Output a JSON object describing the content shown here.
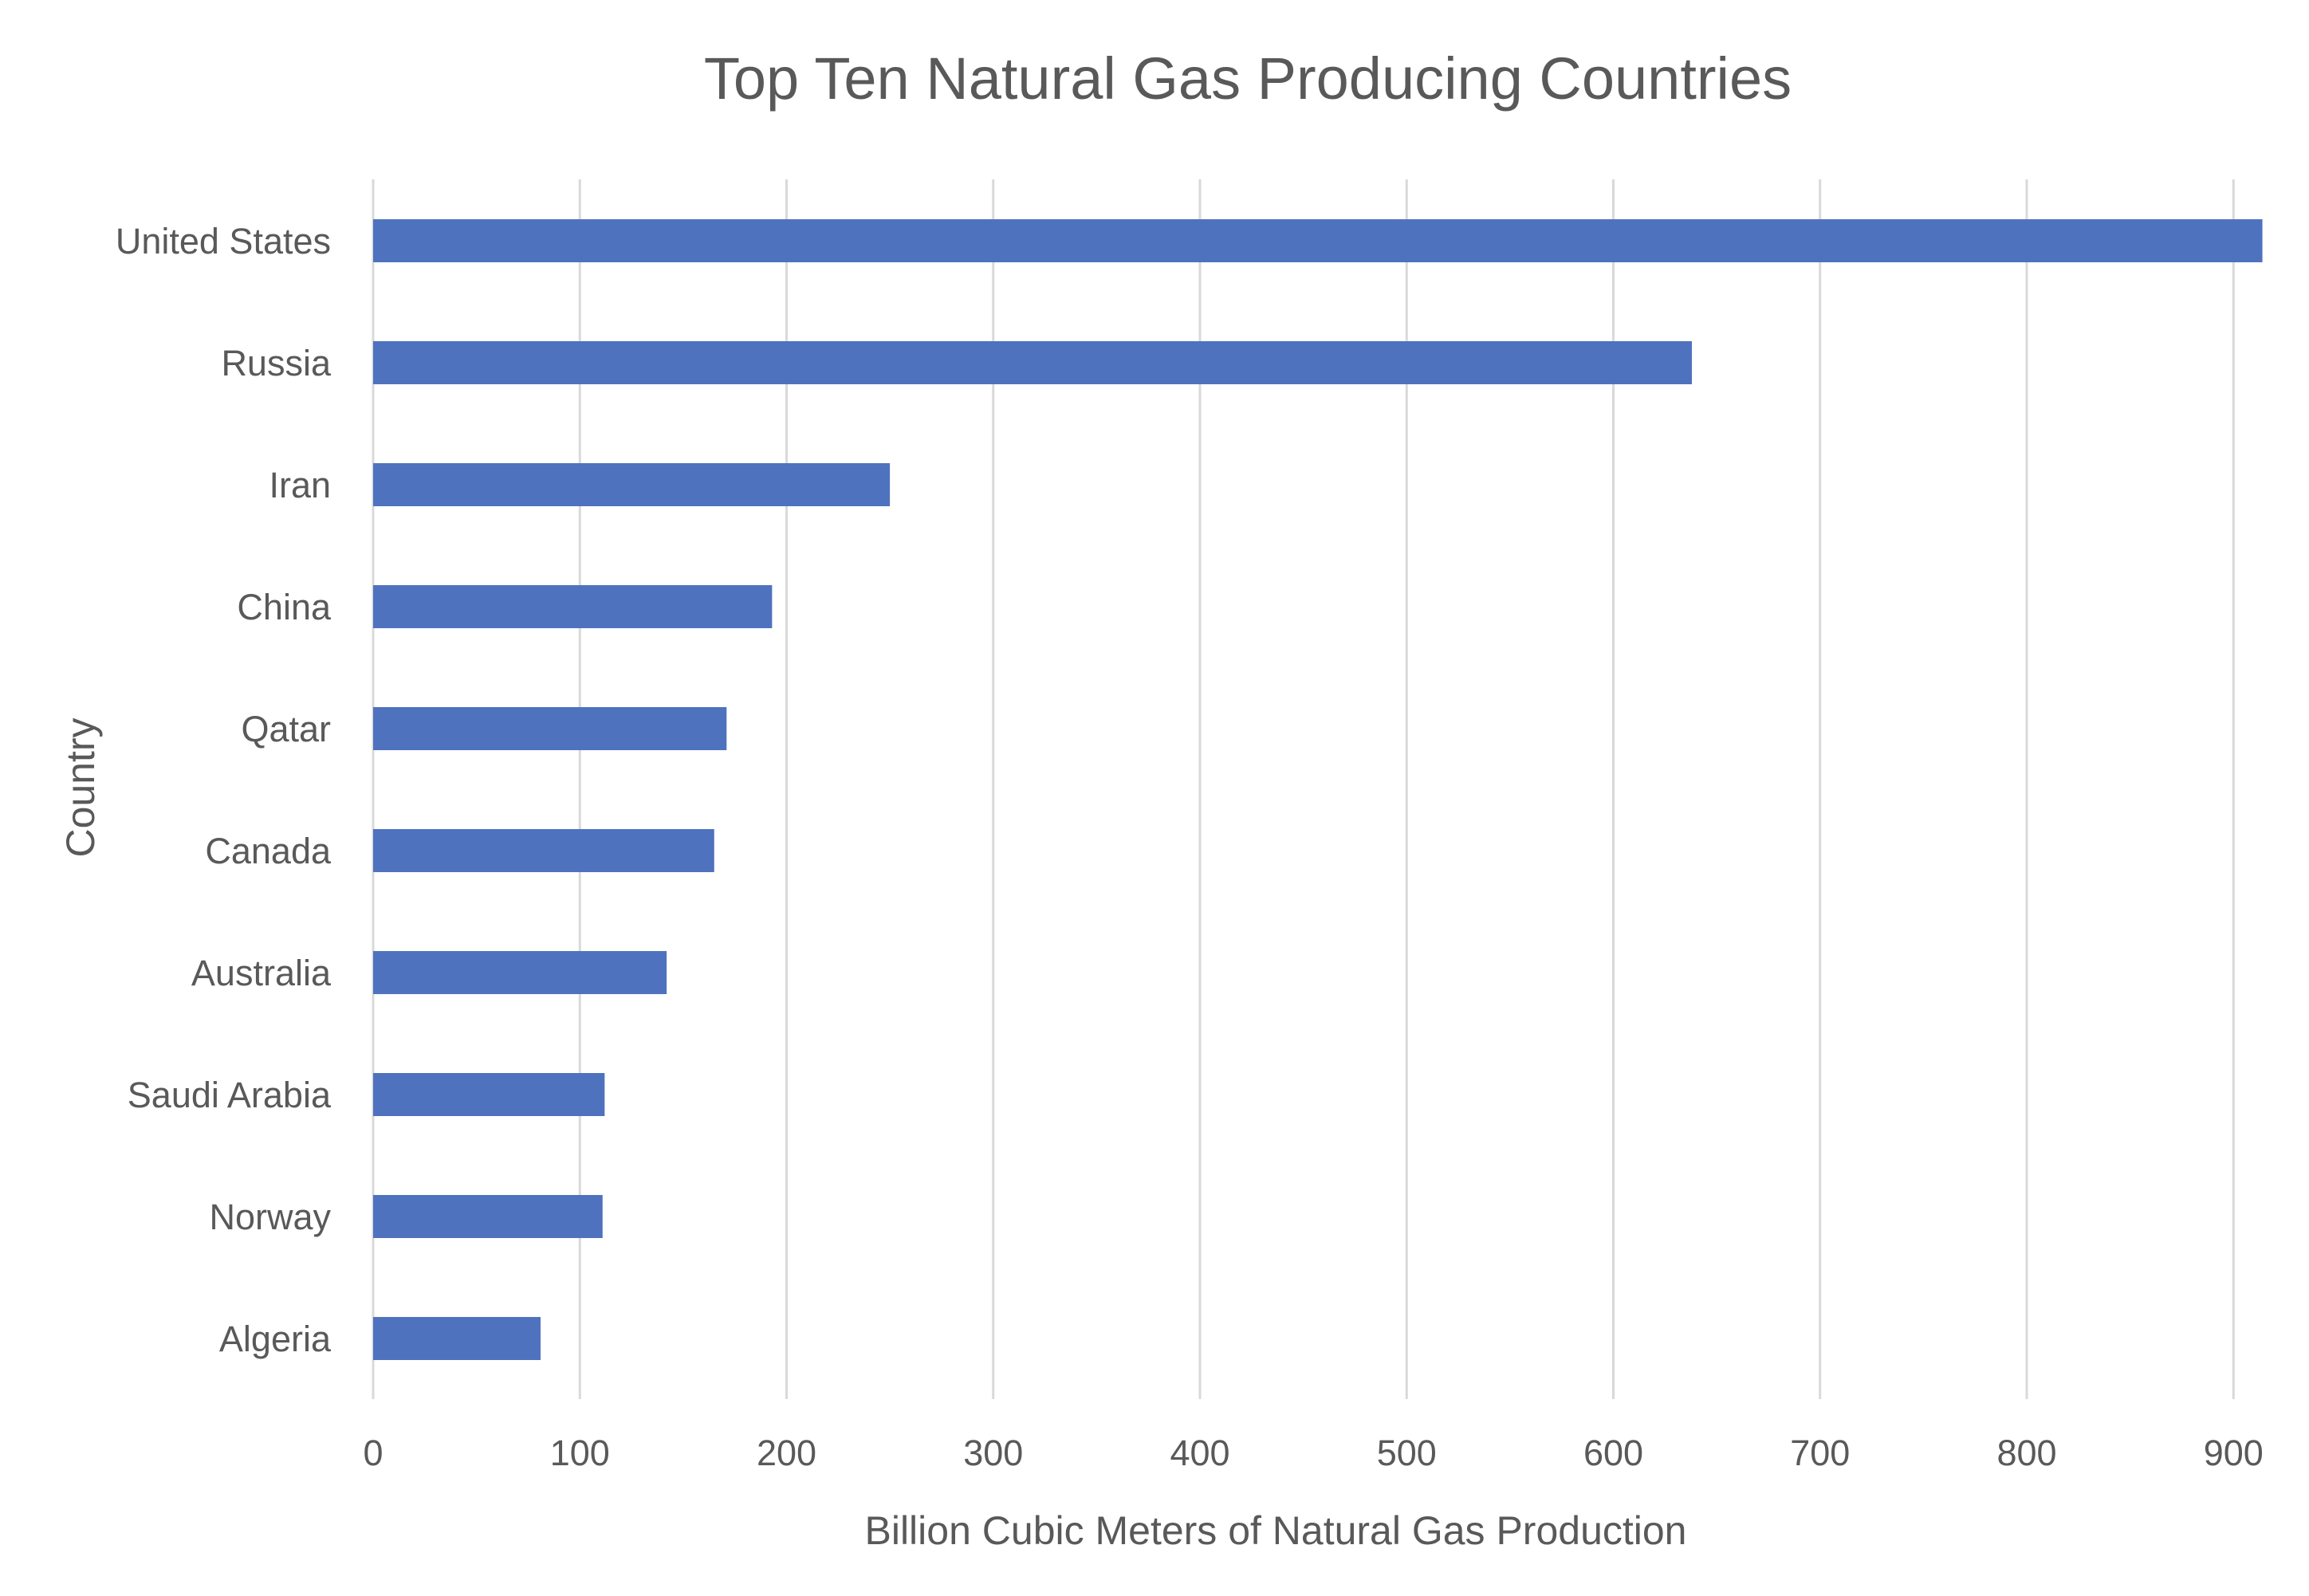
{
  "chart_data": {
    "type": "bar",
    "orientation": "horizontal",
    "title": "Top Ten Natural Gas Producing Countries",
    "xlabel": "Billion Cubic Meters of Natural Gas Production",
    "ylabel": "Country",
    "categories": [
      "United States",
      "Russia",
      "Iran",
      "China",
      "Qatar",
      "Canada",
      "Australia",
      "Saudi Arabia",
      "Norway",
      "Algeria"
    ],
    "values": [
      914,
      638,
      250,
      193,
      171,
      165,
      142,
      112,
      111,
      81
    ],
    "xlim": [
      0,
      900
    ],
    "xticks": [
      0,
      100,
      200,
      300,
      400,
      500,
      600,
      700,
      800,
      900
    ],
    "grid": true,
    "legend": "none",
    "bar_color": "#4f72bf"
  }
}
